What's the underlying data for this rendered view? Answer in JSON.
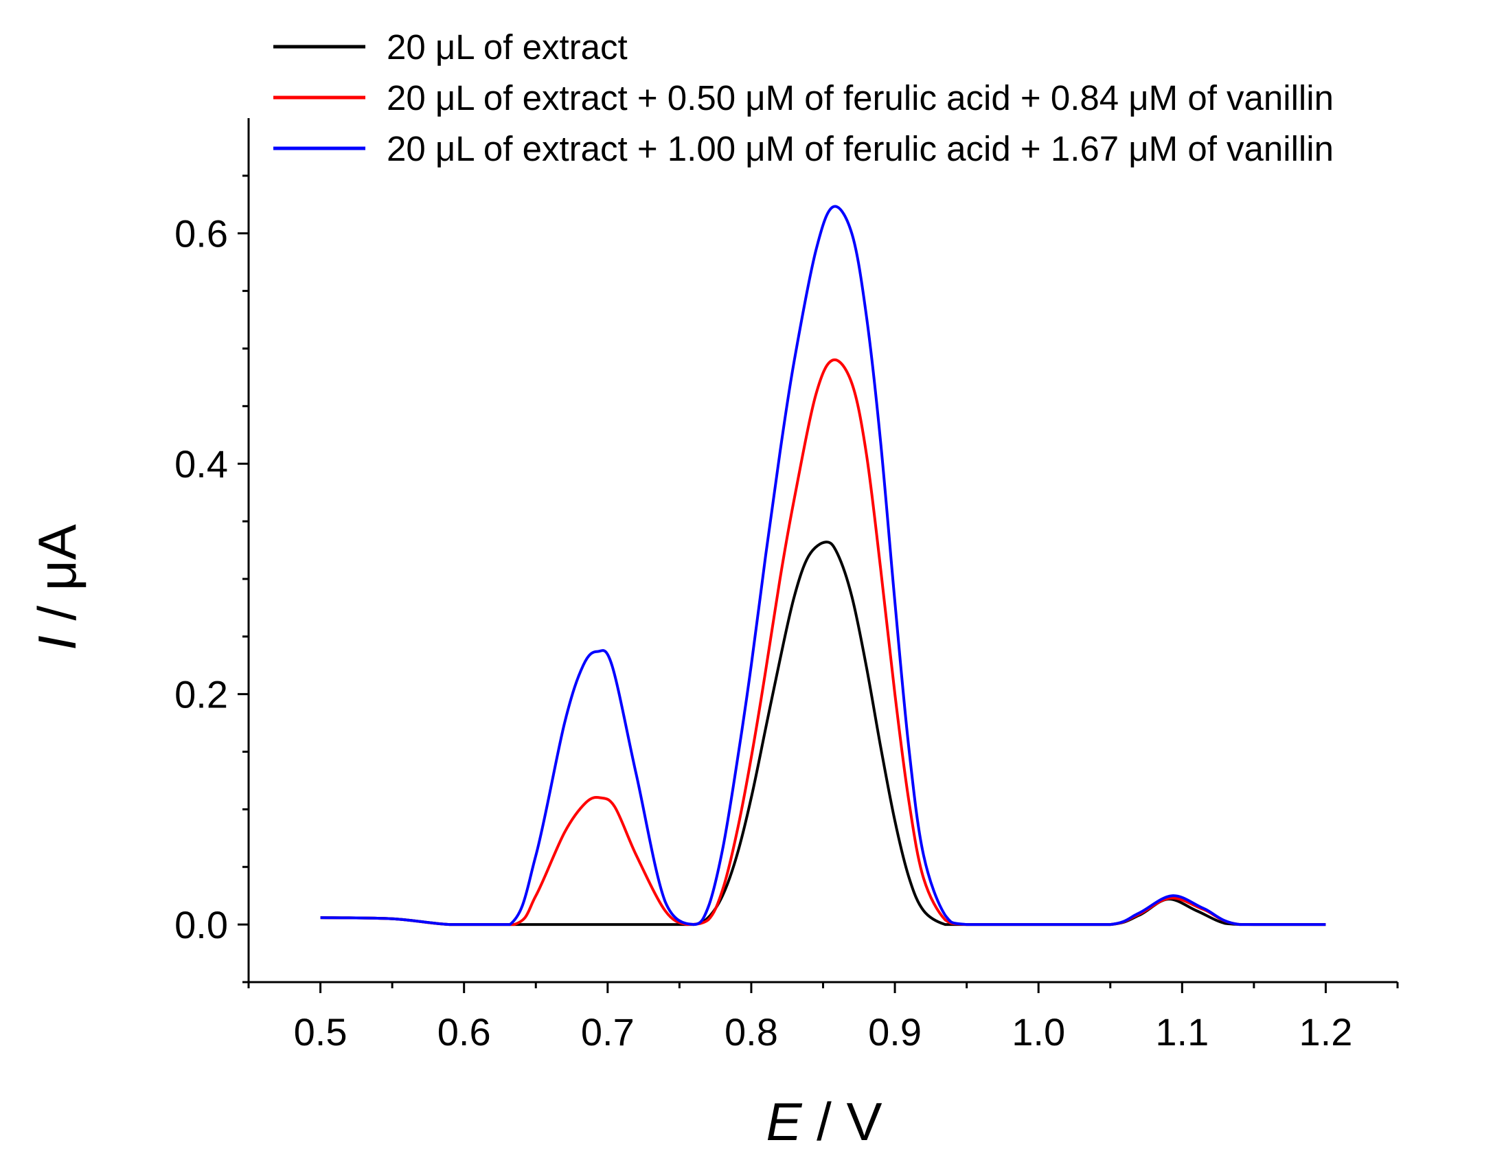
{
  "chart_data": {
    "type": "line",
    "title": "",
    "xlabel": {
      "symbol": "E",
      "unit": "V"
    },
    "ylabel": {
      "symbol": "I",
      "unit": "μA"
    },
    "xlim": [
      0.45,
      1.25
    ],
    "ylim": [
      -0.05,
      0.7
    ],
    "x_ticks": [
      0.5,
      0.6,
      0.7,
      0.8,
      0.9,
      1.0,
      1.1,
      1.2
    ],
    "x_tick_labels": [
      "0.5",
      "0.6",
      "0.7",
      "0.8",
      "0.9",
      "1.0",
      "1.1",
      "1.2"
    ],
    "y_ticks": [
      0.0,
      0.2,
      0.4,
      0.6
    ],
    "y_tick_labels": [
      "0.0",
      "0.2",
      "0.4",
      "0.6"
    ],
    "grid": false,
    "legend_position": "top-left (above plot)",
    "series": [
      {
        "name": "20 μL of extract",
        "color": "#000000",
        "x": [
          0.5,
          0.55,
          0.59,
          0.63,
          0.66,
          0.7,
          0.74,
          0.76,
          0.77,
          0.78,
          0.79,
          0.8,
          0.81,
          0.82,
          0.83,
          0.84,
          0.852,
          0.86,
          0.87,
          0.88,
          0.89,
          0.9,
          0.91,
          0.92,
          0.935,
          0.95,
          1.0,
          1.05,
          1.07,
          1.09,
          1.11,
          1.13,
          1.15,
          1.2
        ],
        "y": [
          0.006,
          0.005,
          0.0,
          0.0,
          0.0,
          0.0,
          0.0,
          0.0,
          0.006,
          0.025,
          0.06,
          0.11,
          0.17,
          0.23,
          0.285,
          0.32,
          0.332,
          0.322,
          0.285,
          0.225,
          0.155,
          0.09,
          0.04,
          0.012,
          0.0,
          0.0,
          0.0,
          0.0,
          0.008,
          0.022,
          0.012,
          0.001,
          0.0,
          0.0
        ]
      },
      {
        "name": "20 μL of extract + 0.50 μM of ferulic acid + 0.84 μM of vanillin",
        "color": "#ff0000",
        "x": [
          0.5,
          0.55,
          0.59,
          0.635,
          0.65,
          0.67,
          0.685,
          0.695,
          0.705,
          0.72,
          0.74,
          0.755,
          0.77,
          0.78,
          0.79,
          0.8,
          0.81,
          0.82,
          0.83,
          0.845,
          0.857,
          0.87,
          0.88,
          0.89,
          0.9,
          0.91,
          0.92,
          0.935,
          0.95,
          1.0,
          1.05,
          1.07,
          1.092,
          1.115,
          1.14,
          1.2
        ],
        "y": [
          0.006,
          0.005,
          0.0,
          0.0,
          0.025,
          0.08,
          0.106,
          0.11,
          0.102,
          0.06,
          0.012,
          0.0,
          0.004,
          0.03,
          0.08,
          0.145,
          0.22,
          0.3,
          0.37,
          0.46,
          0.49,
          0.47,
          0.41,
          0.31,
          0.2,
          0.105,
          0.04,
          0.004,
          0.0,
          0.0,
          0.0,
          0.009,
          0.023,
          0.013,
          0.0,
          0.0
        ]
      },
      {
        "name": "20 μL of extract + 1.00 μM of ferulic acid + 1.67 μM of vanillin",
        "color": "#0000ff",
        "x": [
          0.5,
          0.55,
          0.59,
          0.632,
          0.65,
          0.67,
          0.683,
          0.693,
          0.703,
          0.72,
          0.74,
          0.76,
          0.77,
          0.78,
          0.79,
          0.8,
          0.81,
          0.82,
          0.83,
          0.845,
          0.857,
          0.87,
          0.88,
          0.89,
          0.9,
          0.91,
          0.92,
          0.935,
          0.95,
          1.0,
          1.05,
          1.07,
          1.093,
          1.115,
          1.14,
          1.2
        ],
        "y": [
          0.006,
          0.005,
          0.0,
          0.0,
          0.06,
          0.175,
          0.225,
          0.237,
          0.225,
          0.13,
          0.02,
          0.0,
          0.015,
          0.065,
          0.14,
          0.225,
          0.32,
          0.41,
          0.49,
          0.585,
          0.623,
          0.6,
          0.53,
          0.42,
          0.28,
          0.15,
          0.06,
          0.008,
          0.0,
          0.0,
          0.0,
          0.01,
          0.025,
          0.014,
          0.0,
          0.0
        ]
      }
    ]
  }
}
